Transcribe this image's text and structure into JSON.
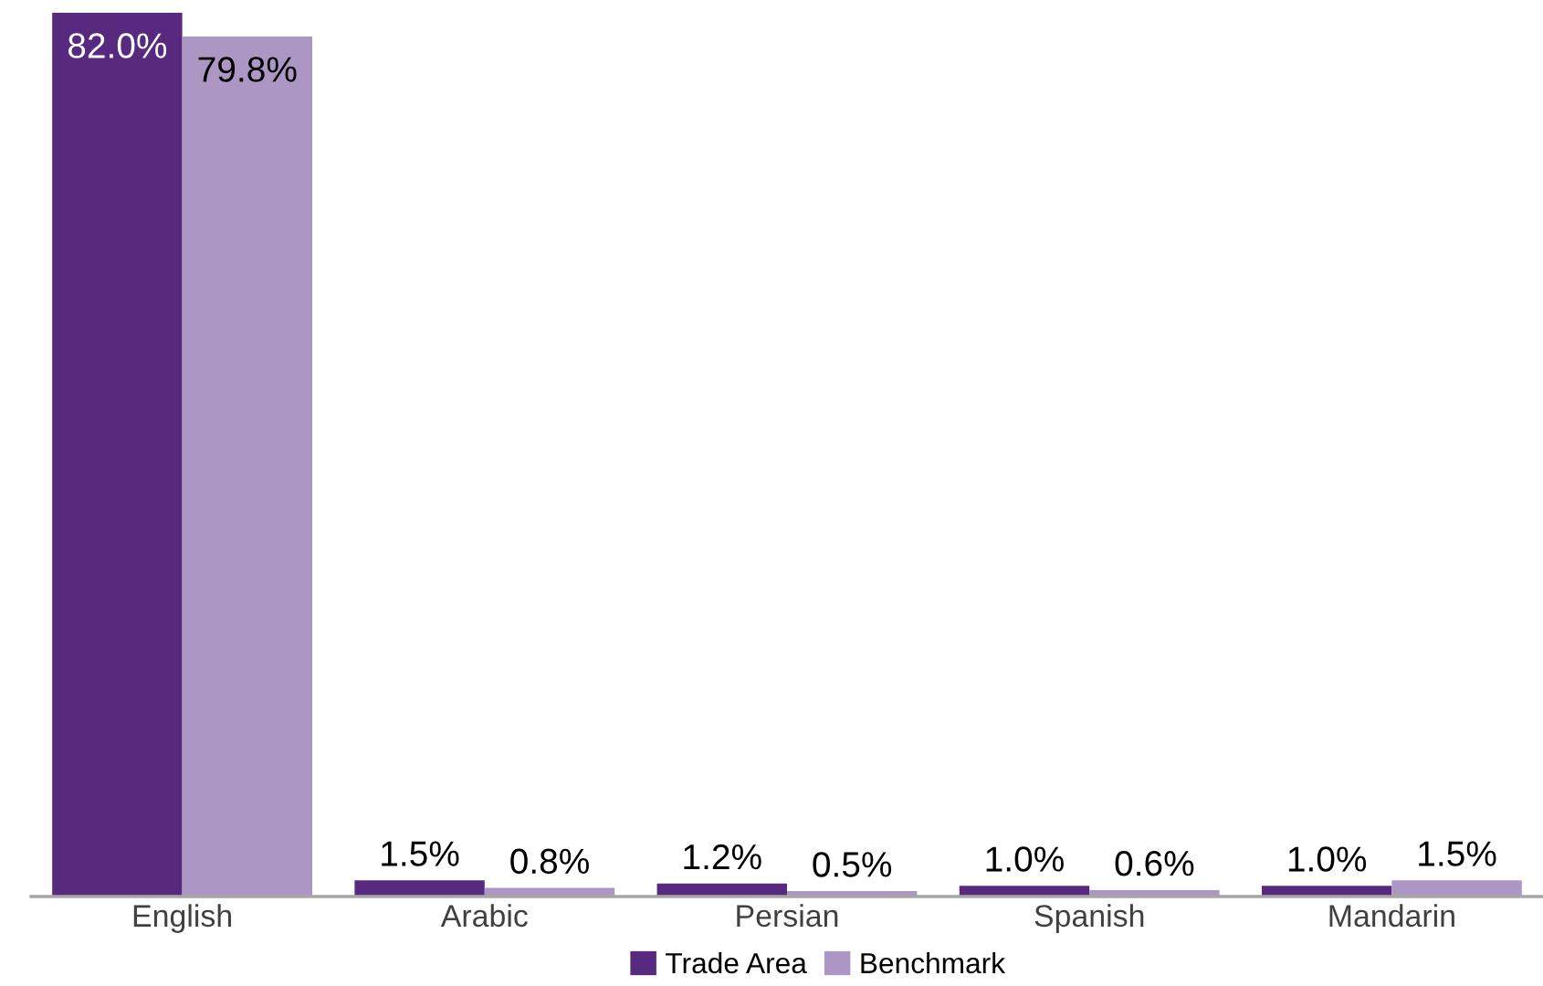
{
  "chart_data": {
    "type": "bar",
    "categories": [
      "English",
      "Arabic",
      "Persian",
      "Spanish",
      "Mandarin"
    ],
    "series": [
      {
        "name": "Trade Area",
        "color": "#582a7f",
        "values": [
          82.0,
          1.5,
          1.2,
          1.0,
          1.0
        ],
        "value_labels": [
          "82.0%",
          "1.5%",
          "1.2%",
          "1.0%",
          "1.0%"
        ]
      },
      {
        "name": "Benchmark",
        "color": "#ac96c4",
        "values": [
          79.8,
          0.8,
          0.5,
          0.6,
          1.5
        ],
        "value_labels": [
          "79.8%",
          "0.8%",
          "0.5%",
          "0.6%",
          "1.5%"
        ]
      }
    ],
    "ylim": [
      0,
      82.0
    ],
    "tick_labels": "x",
    "grid": false,
    "legend": "bottom"
  }
}
